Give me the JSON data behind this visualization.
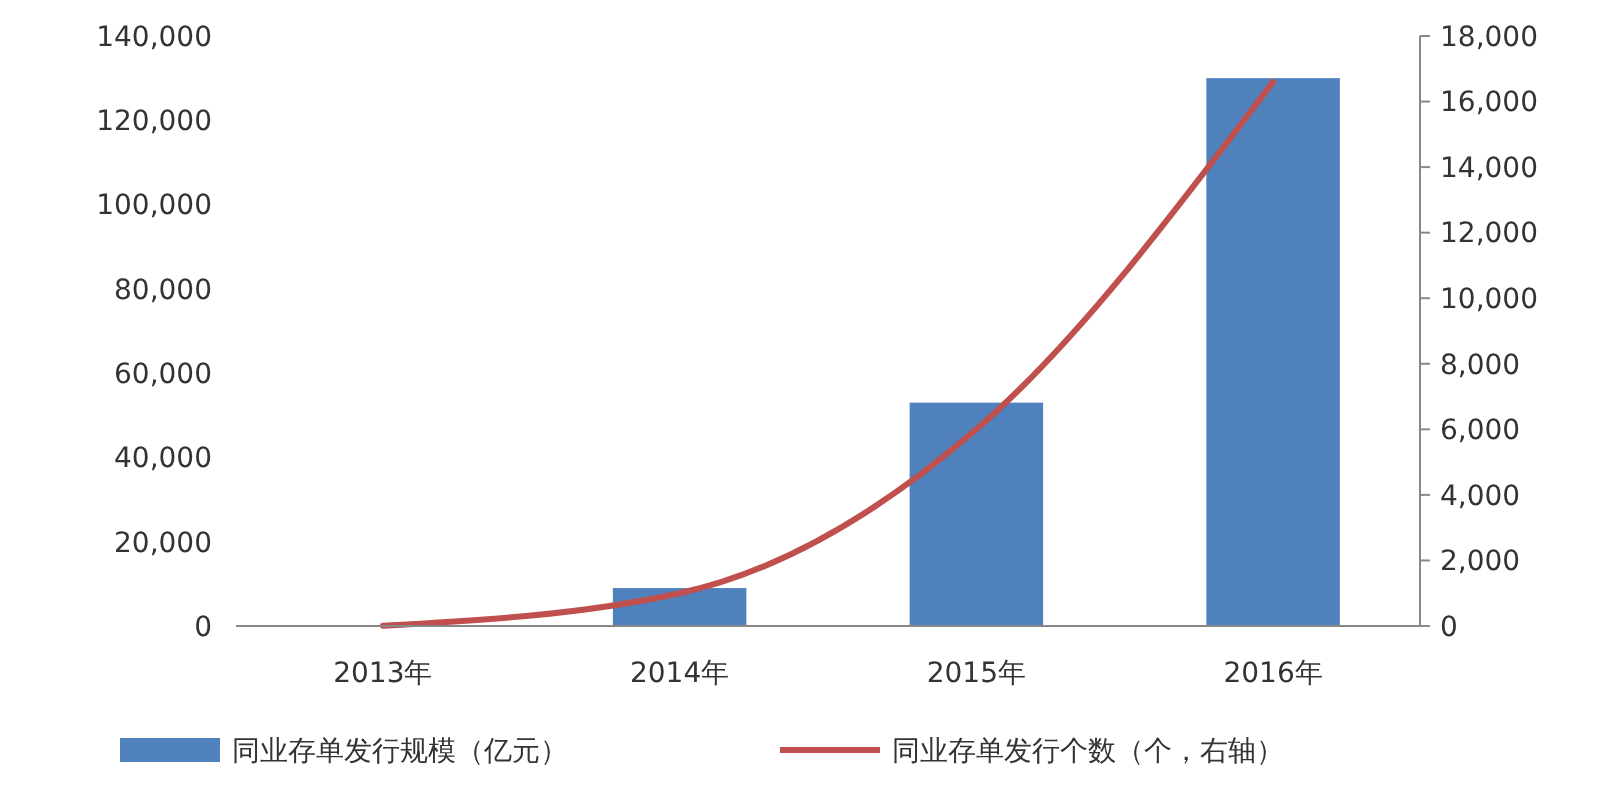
{
  "chart_data": {
    "type": "bar",
    "categories": [
      "2013年",
      "2014年",
      "2015年",
      "2016年"
    ],
    "series": [
      {
        "name": "同业存单发行规模（亿元）",
        "color": "#4f81bd",
        "values": [
          null,
          9000,
          53000,
          130000
        ]
      },
      {
        "name": "同业存单发行个数（个，右轴）",
        "type": "line",
        "axis": "y2",
        "color": "#c0504d",
        "values": [
          10,
          1000,
          6000,
          16600
        ]
      }
    ],
    "ylim": [
      0,
      140000
    ],
    "yticks": [
      {
        "value": 0,
        "label": "0"
      },
      {
        "value": 20000,
        "label": "20,000"
      },
      {
        "value": 40000,
        "label": "40,000"
      },
      {
        "value": 60000,
        "label": "60,000"
      },
      {
        "value": 80000,
        "label": "80,000"
      },
      {
        "value": 100000,
        "label": "100,000"
      },
      {
        "value": 120000,
        "label": "120,000"
      },
      {
        "value": 140000,
        "label": "140,000"
      }
    ],
    "y2lim": [
      0,
      18000
    ],
    "y2ticks": [
      {
        "value": 0,
        "label": "0"
      },
      {
        "value": 2000,
        "label": "2,000"
      },
      {
        "value": 4000,
        "label": "4,000"
      },
      {
        "value": 6000,
        "label": "6,000"
      },
      {
        "value": 8000,
        "label": "8,000"
      },
      {
        "value": 10000,
        "label": "10,000"
      },
      {
        "value": 12000,
        "label": "12,000"
      },
      {
        "value": 14000,
        "label": "14,000"
      },
      {
        "value": 16000,
        "label": "16,000"
      },
      {
        "value": 18000,
        "label": "18,000"
      }
    ],
    "legend": "bottom",
    "grid": false,
    "marker": "none",
    "line_style": "solid"
  }
}
